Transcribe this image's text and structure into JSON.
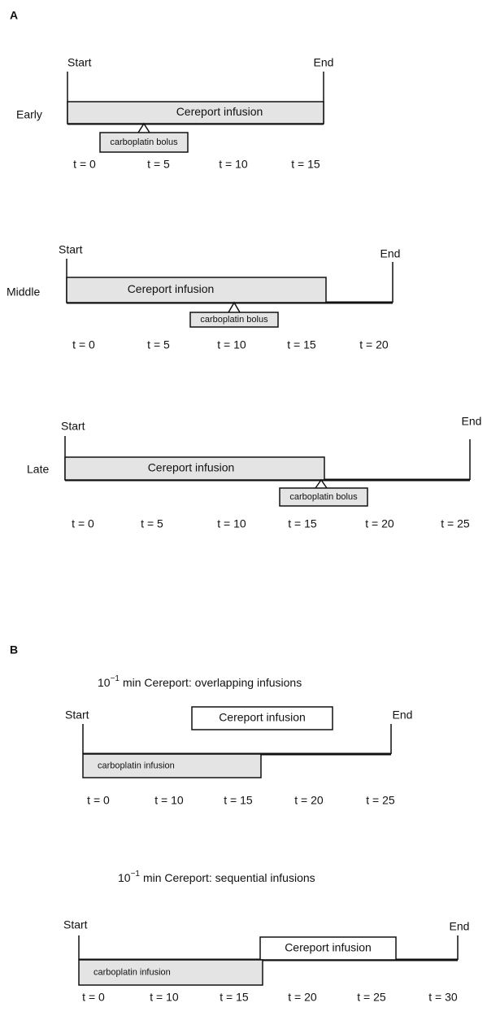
{
  "panel_a": {
    "label": "A",
    "schedules": [
      {
        "name": "Early",
        "start": "Start",
        "end": "End",
        "infusion": "Cereport infusion",
        "bolus": "carboplatin bolus",
        "times": [
          "t = 0",
          "t = 5",
          "t = 10",
          "t = 15"
        ]
      },
      {
        "name": "Middle",
        "start": "Start",
        "end": "End",
        "infusion": "Cereport infusion",
        "bolus": "carboplatin bolus",
        "times": [
          "t = 0",
          "t = 5",
          "t = 10",
          "t = 15",
          "t = 20"
        ]
      },
      {
        "name": "Late",
        "start": "Start",
        "end": "End",
        "infusion": "Cereport infusion",
        "bolus": "carboplatin bolus",
        "times": [
          "t = 0",
          "t = 5",
          "t = 10",
          "t = 15",
          "t = 20",
          "t = 25"
        ]
      }
    ]
  },
  "panel_b": {
    "label": "B",
    "schedules": [
      {
        "title": {
          "base": "10",
          "exponent": "−1",
          "text": "min Cereport: overlapping infusions"
        },
        "start": "Start",
        "end": "End",
        "cereport": "Cereport infusion",
        "carboplatin": "carboplatin infusion",
        "times": [
          "t = 0",
          "t = 10",
          "t = 15",
          "t = 20",
          "t = 25"
        ]
      },
      {
        "title": {
          "base": "10",
          "exponent": "−1",
          "text": "min Cereport: sequential infusions"
        },
        "start": "Start",
        "end": "End",
        "cereport": "Cereport infusion",
        "carboplatin": "carboplatin infusion",
        "times": [
          "t = 0",
          "t = 10",
          "t = 15",
          "t = 20",
          "t = 25",
          "t = 30"
        ]
      }
    ]
  }
}
